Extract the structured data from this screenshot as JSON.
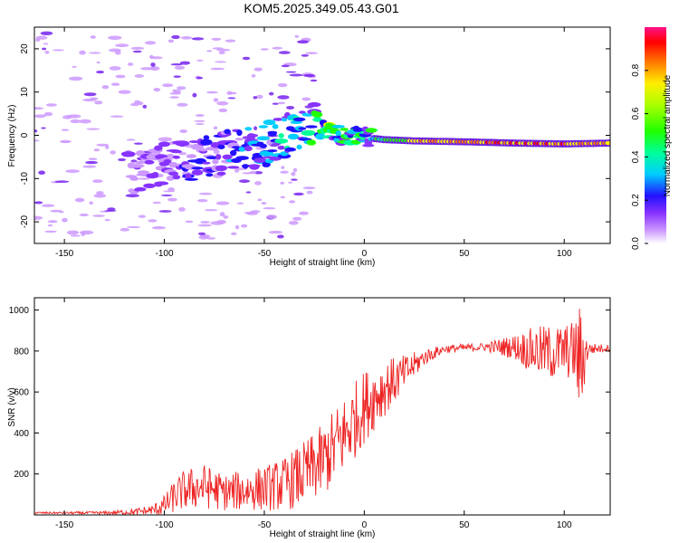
{
  "title": "KOM5.2025.349.05.43.G01",
  "chart_data": [
    {
      "type": "heatmap",
      "title": "KOM5.2025.349.05.43.G01",
      "xlabel": "Height of straight line (km)",
      "ylabel": "Frequency (Hz)",
      "xlim": [
        -165,
        123
      ],
      "ylim": [
        -25,
        25
      ],
      "xticks": [
        -150,
        -100,
        -50,
        0,
        50,
        100
      ],
      "yticks": [
        -20,
        -10,
        0,
        10,
        20
      ],
      "colorbar": {
        "label": "Normalized spectral amplitude",
        "range": [
          0,
          1
        ],
        "ticks": [
          "0.0",
          "0.2",
          "0.4",
          "0.6",
          "0.8"
        ]
      },
      "trace": {
        "description": "doppler trace",
        "x": [
          -115,
          -100,
          -80,
          -60,
          -45,
          -35,
          -25,
          -18,
          -10,
          0,
          10,
          25,
          50,
          75,
          100,
          123
        ],
        "y": [
          -9,
          -7,
          -5,
          -3,
          -1.5,
          0.5,
          2.5,
          1.5,
          0,
          -0.5,
          -1,
          -1.3,
          -1.5,
          -1.8,
          -2,
          -1.8
        ],
        "amplitude": [
          0.15,
          0.2,
          0.25,
          0.3,
          0.35,
          0.4,
          0.5,
          0.55,
          0.5,
          0.45,
          0.6,
          0.8,
          0.9,
          0.95,
          0.9,
          0.85
        ]
      }
    },
    {
      "type": "line",
      "xlabel": "Height of straight line (km)",
      "ylabel": "SNR (v/v)",
      "xlim": [
        -165,
        123
      ],
      "ylim": [
        0,
        1060
      ],
      "xticks": [
        -150,
        -100,
        -50,
        0,
        50,
        100
      ],
      "yticks": [
        200,
        400,
        600,
        800,
        1000
      ],
      "color": "#ee2222",
      "series": [
        {
          "name": "SNR",
          "x": [
            -165,
            -150,
            -130,
            -115,
            -105,
            -100,
            -95,
            -90,
            -80,
            -70,
            -60,
            -50,
            -40,
            -30,
            -20,
            -10,
            0,
            10,
            20,
            30,
            40,
            60,
            75,
            85,
            95,
            100,
            105,
            108,
            112,
            123
          ],
          "mean": [
            10,
            10,
            10,
            15,
            25,
            45,
            90,
            120,
            140,
            110,
            120,
            130,
            150,
            200,
            270,
            390,
            530,
            620,
            690,
            770,
            810,
            820,
            820,
            800,
            790,
            800,
            800,
            740,
            810,
            815
          ],
          "spread": [
            5,
            5,
            8,
            15,
            30,
            50,
            80,
            100,
            110,
            90,
            100,
            110,
            130,
            160,
            180,
            200,
            180,
            140,
            90,
            40,
            20,
            20,
            60,
            120,
            140,
            130,
            150,
            300,
            30,
            15
          ]
        }
      ]
    }
  ]
}
